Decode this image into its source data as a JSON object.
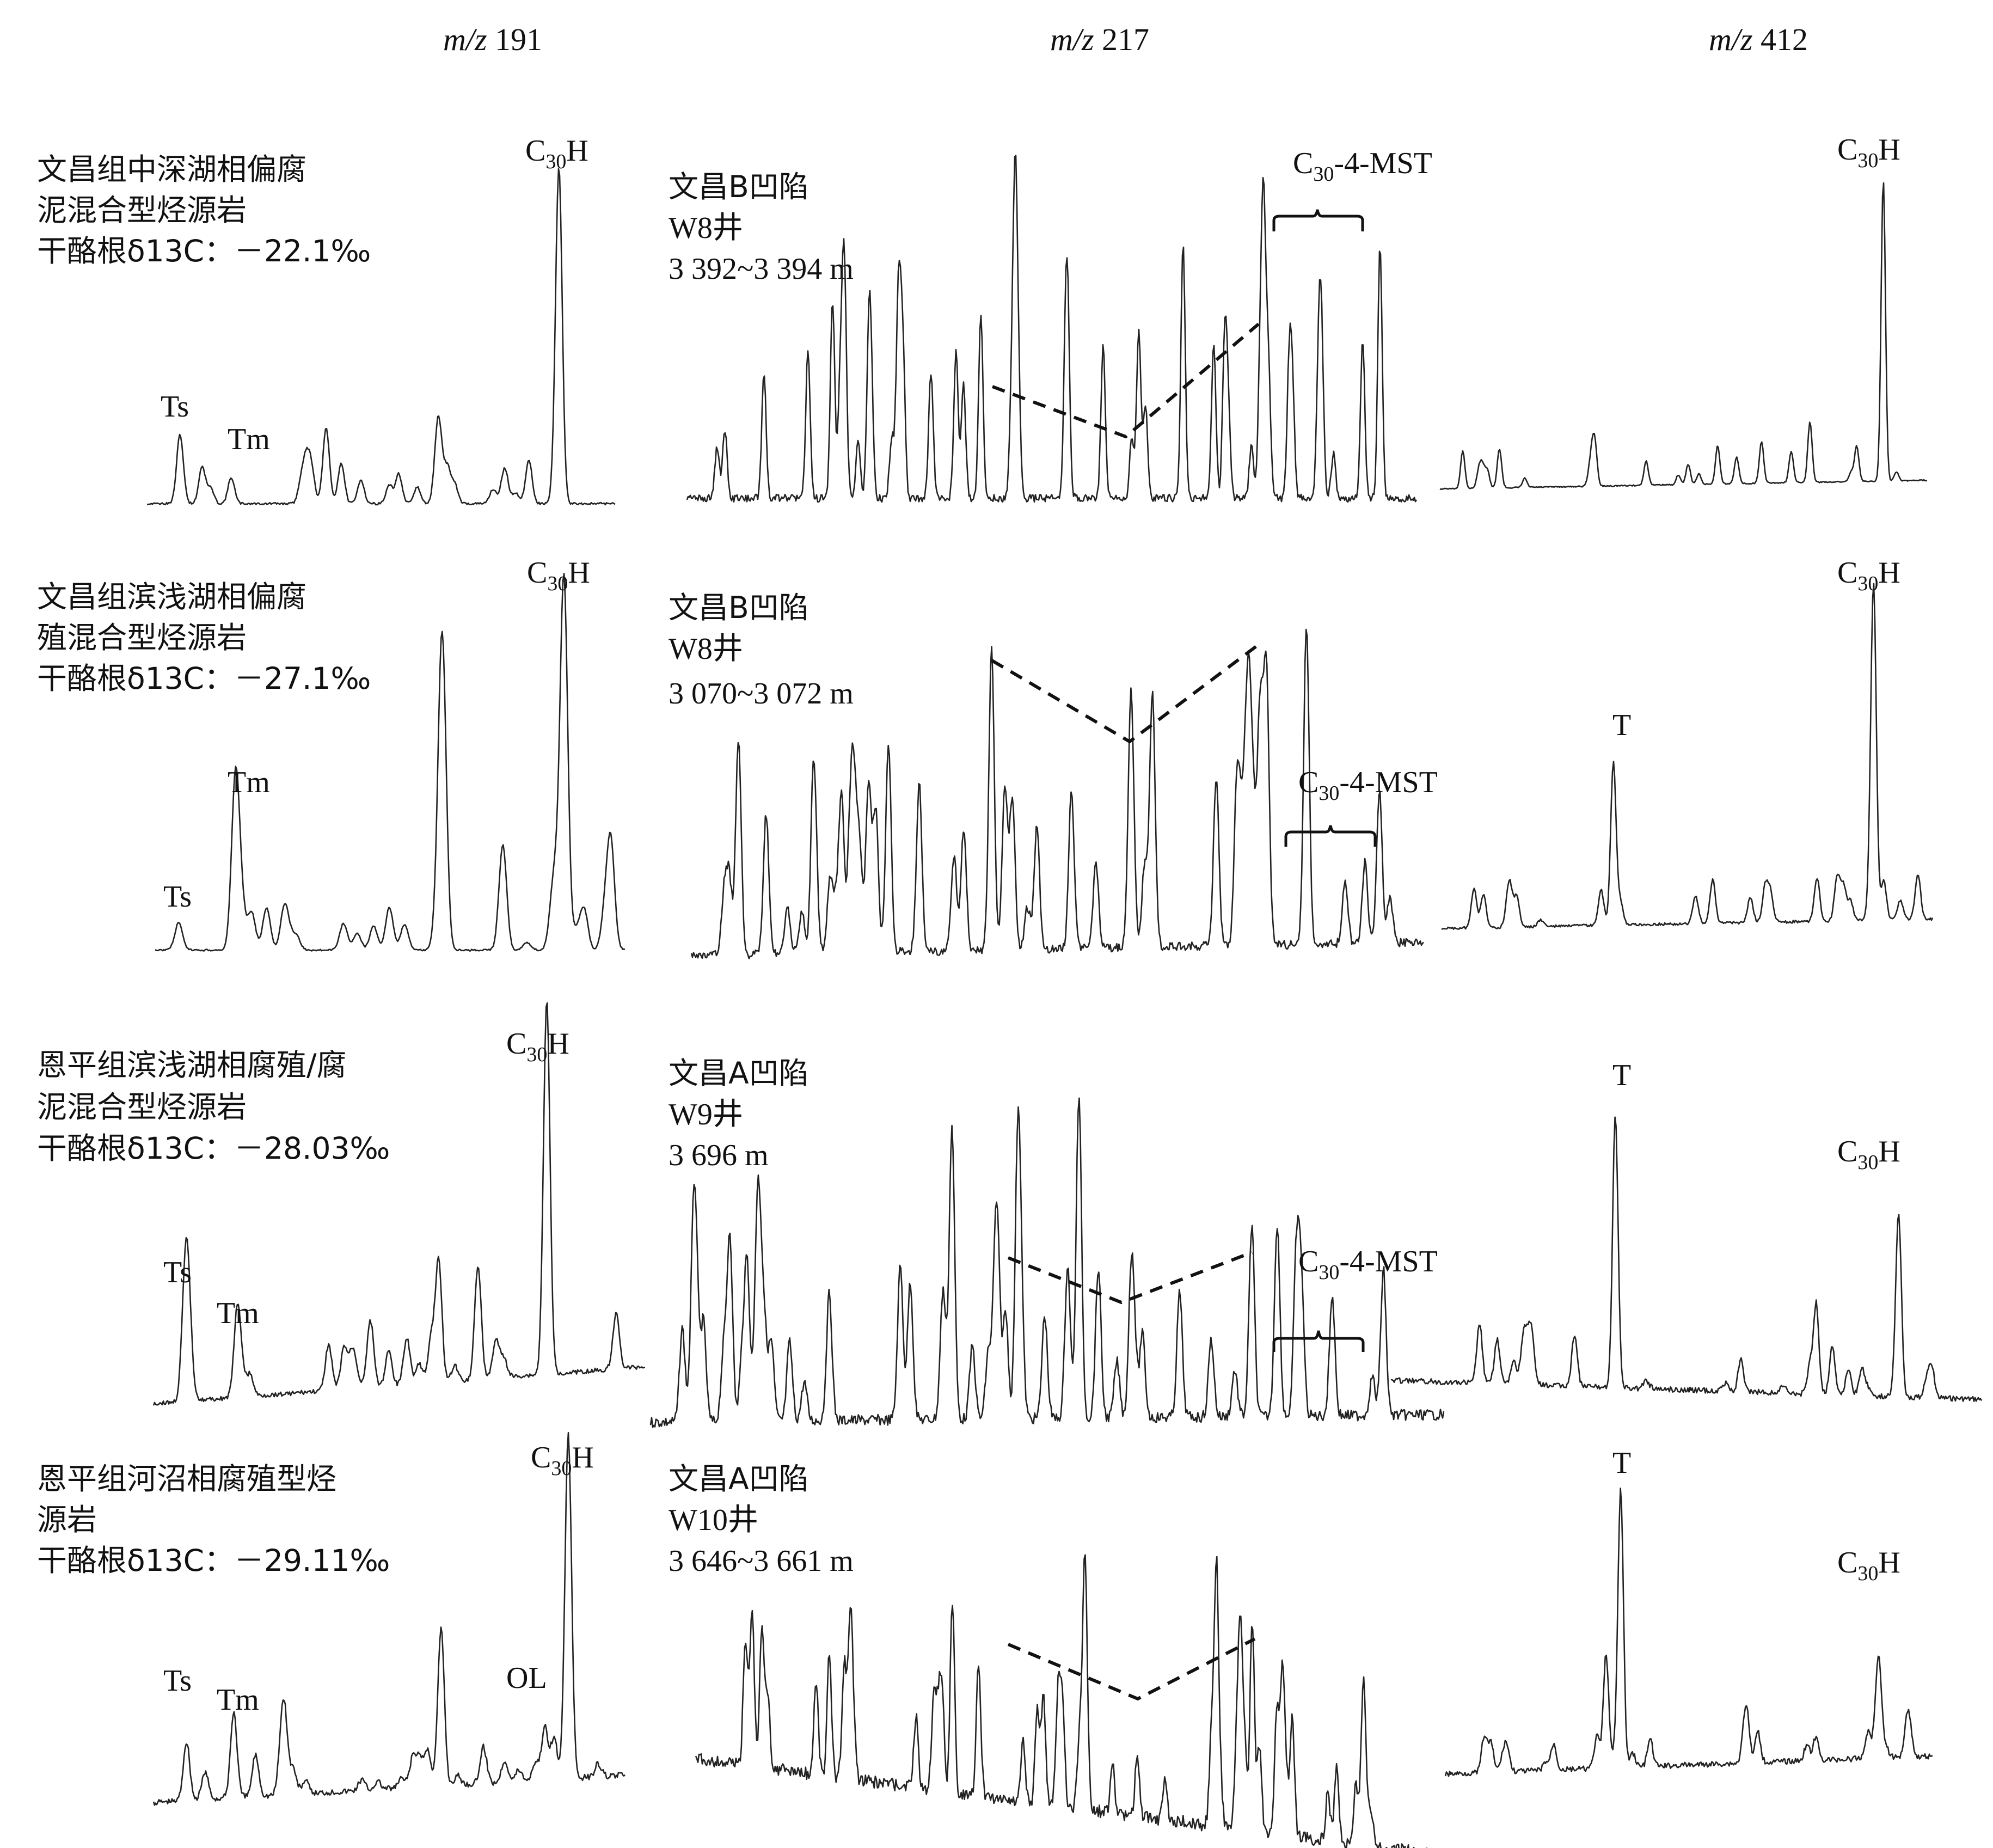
{
  "columns": [
    {
      "prefix": "m/z",
      "num": "191"
    },
    {
      "prefix": "m/z",
      "num": "217"
    },
    {
      "prefix": "m/z",
      "num": "412"
    }
  ],
  "c30h_label": {
    "main": "C",
    "sub": "30",
    "tail": "H"
  },
  "mst_label": {
    "main": "C",
    "sub": "30",
    "tail": "-4-MST"
  },
  "rows": [
    {
      "source": [
        "文昌组中深湖相偏腐",
        "泥混合型烃源岩",
        "干酪根δ13C：－22.1‰"
      ],
      "well": [
        "文昌B凹陷",
        "W8井",
        "3 392~3 394 m"
      ],
      "peaks191": [
        "Ts",
        "Tm"
      ],
      "peaks412": []
    },
    {
      "source": [
        "文昌组滨浅湖相偏腐",
        "殖混合型烃源岩",
        "干酪根δ13C：－27.1‰"
      ],
      "well": [
        "文昌B凹陷",
        "W8井",
        " 3 070~3 072 m"
      ],
      "peaks191": [
        "Ts",
        "Tm"
      ],
      "peaks412": [
        "T"
      ]
    },
    {
      "source": [
        "恩平组滨浅湖相腐殖/腐",
        "泥混合型烃源岩",
        "干酪根δ13C：－28.03‰"
      ],
      "well": [
        "文昌A凹陷",
        "W9井",
        "3 696 m"
      ],
      "peaks191": [
        "Ts",
        "Tm"
      ],
      "peaks412": [
        "T"
      ]
    },
    {
      "source": [
        "恩平组河沼相腐殖型烃",
        "源岩",
        "干酪根δ13C：－29.11‰"
      ],
      "well": [
        "文昌A凹陷",
        "W10井",
        "3 646~3 661 m"
      ],
      "peaks191": [
        "Ts",
        "Tm",
        "OL"
      ],
      "peaks412": [
        "T"
      ]
    }
  ],
  "chart_data": {
    "type": "line",
    "title": "",
    "xlabel": "",
    "ylabel": "",
    "note": "Mass chromatograms; relative peak intensities (0-1) estimated from the figure",
    "panels": [
      {
        "row": 1,
        "ion": "m/z 191",
        "peaks": [
          {
            "name": "Ts",
            "rt": 0.07,
            "h": 0.19
          },
          {
            "name": "Tm",
            "rt": 0.18,
            "h": 0.08
          },
          {
            "name": "",
            "rt": 0.62,
            "h": 0.17
          },
          {
            "name": "C30H",
            "rt": 0.88,
            "h": 1.0
          }
        ]
      },
      {
        "row": 1,
        "ion": "m/z 217",
        "peaks": [
          {
            "name": "",
            "rt": 0.45,
            "h": 0.86
          },
          {
            "name": "",
            "rt": 0.68,
            "h": 0.76
          },
          {
            "name": "C30-4-MST",
            "rt": 0.95,
            "h": 0.75
          }
        ]
      },
      {
        "row": 1,
        "ion": "m/z 412",
        "peaks": [
          {
            "name": "",
            "rt": 0.76,
            "h": 0.07
          },
          {
            "name": "C30H",
            "rt": 0.91,
            "h": 1.0
          }
        ]
      },
      {
        "row": 2,
        "ion": "m/z 191",
        "peaks": [
          {
            "name": "Ts",
            "rt": 0.05,
            "h": 0.08
          },
          {
            "name": "Tm",
            "rt": 0.17,
            "h": 0.42
          },
          {
            "name": "",
            "rt": 0.61,
            "h": 0.76
          },
          {
            "name": "",
            "rt": 0.74,
            "h": 0.31
          },
          {
            "name": "C30H",
            "rt": 0.87,
            "h": 1.0
          },
          {
            "name": "",
            "rt": 0.97,
            "h": 0.31
          }
        ]
      },
      {
        "row": 2,
        "ion": "m/z 217",
        "peaks": [
          {
            "name": "",
            "rt": 0.41,
            "h": 0.89
          },
          {
            "name": "",
            "rt": 0.6,
            "h": 0.64
          },
          {
            "name": "",
            "rt": 0.76,
            "h": 0.7
          },
          {
            "name": "",
            "rt": 0.84,
            "h": 0.95
          },
          {
            "name": "C30-4-MST",
            "rt": 0.92,
            "h": 0.24
          }
        ]
      },
      {
        "row": 2,
        "ion": "m/z 412",
        "peaks": [
          {
            "name": "T",
            "rt": 0.35,
            "h": 0.5
          },
          {
            "name": "C30H",
            "rt": 0.88,
            "h": 1.0
          },
          {
            "name": "",
            "rt": 0.97,
            "h": 0.14
          }
        ]
      },
      {
        "row": 3,
        "ion": "m/z 191",
        "peaks": [
          {
            "name": "Ts",
            "rt": 0.07,
            "h": 0.31
          },
          {
            "name": "Tm",
            "rt": 0.17,
            "h": 0.24
          },
          {
            "name": "",
            "rt": 0.58,
            "h": 0.35
          },
          {
            "name": "",
            "rt": 0.66,
            "h": 0.33
          },
          {
            "name": "C30H",
            "rt": 0.8,
            "h": 1.0
          }
        ]
      },
      {
        "row": 3,
        "ion": "m/z 217",
        "peaks": [
          {
            "name": "",
            "rt": 0.1,
            "h": 0.58
          },
          {
            "name": "",
            "rt": 0.38,
            "h": 0.91
          },
          {
            "name": "",
            "rt": 0.54,
            "h": 1.0
          },
          {
            "name": "",
            "rt": 0.79,
            "h": 0.6
          },
          {
            "name": "C30-4-MST",
            "rt": 0.91,
            "h": 0.12
          }
        ]
      },
      {
        "row": 3,
        "ion": "m/z 412",
        "peaks": [
          {
            "name": "",
            "rt": 0.15,
            "h": 0.22
          },
          {
            "name": "T",
            "rt": 0.38,
            "h": 1.0
          },
          {
            "name": "",
            "rt": 0.72,
            "h": 0.33
          },
          {
            "name": "C30H",
            "rt": 0.86,
            "h": 0.6
          }
        ]
      },
      {
        "row": 4,
        "ion": "m/z 191",
        "peaks": [
          {
            "name": "Ts",
            "rt": 0.07,
            "h": 0.18
          },
          {
            "name": "Tm",
            "rt": 0.17,
            "h": 0.17
          },
          {
            "name": "",
            "rt": 0.61,
            "h": 0.48
          },
          {
            "name": "OL",
            "rt": 0.83,
            "h": 0.16
          },
          {
            "name": "C30H",
            "rt": 0.88,
            "h": 1.0
          }
        ]
      },
      {
        "row": 4,
        "ion": "m/z 217",
        "peaks": [
          {
            "name": "",
            "rt": 0.35,
            "h": 0.75
          },
          {
            "name": "",
            "rt": 0.53,
            "h": 0.72
          },
          {
            "name": "",
            "rt": 0.71,
            "h": 1.0
          },
          {
            "name": "",
            "rt": 0.8,
            "h": 0.64
          },
          {
            "name": "",
            "rt": 0.9,
            "h": 0.22
          }
        ]
      },
      {
        "row": 4,
        "ion": "m/z 412",
        "peaks": [
          {
            "name": "",
            "rt": 0.08,
            "h": 0.13
          },
          {
            "name": "",
            "rt": 0.33,
            "h": 0.31
          },
          {
            "name": "T",
            "rt": 0.36,
            "h": 1.0
          },
          {
            "name": "C30H",
            "rt": 0.89,
            "h": 0.34
          }
        ]
      }
    ]
  }
}
